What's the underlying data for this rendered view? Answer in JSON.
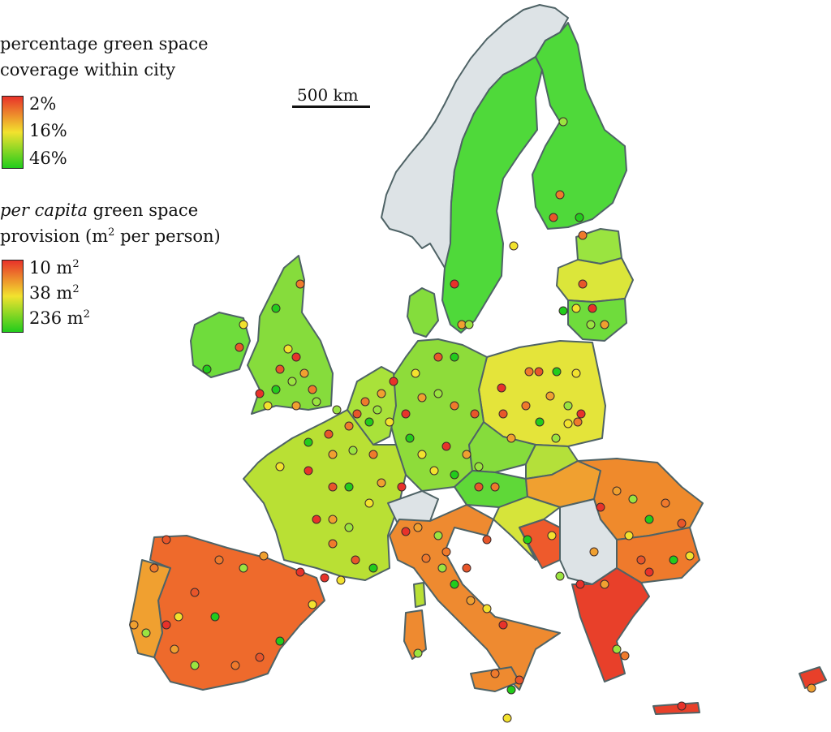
{
  "legend": {
    "coverage": {
      "title_line1": "percentage green space",
      "title_line2": "coverage within city",
      "ticks": [
        "2%",
        "16%",
        "46%"
      ]
    },
    "per_capita": {
      "title_em": "per capita",
      "title_rest": " green space",
      "title_line2_pre": "provision (m",
      "title_line2_sup": "2",
      "title_line2_post": " per person)",
      "ticks": [
        {
          "num": "10 m",
          "sup": "2"
        },
        {
          "num": "38 m",
          "sup": "2"
        },
        {
          "num": "236 m",
          "sup": "2"
        }
      ]
    },
    "colors": {
      "low": "#e8322a",
      "mid": "#f2e22e",
      "high": "#22cc1c"
    }
  },
  "scale_bar": {
    "label": "500 km"
  },
  "map_colors": {
    "coast": "#4f6366",
    "no_data": "#dde3e6",
    "borders": "#6e7c7f"
  }
}
